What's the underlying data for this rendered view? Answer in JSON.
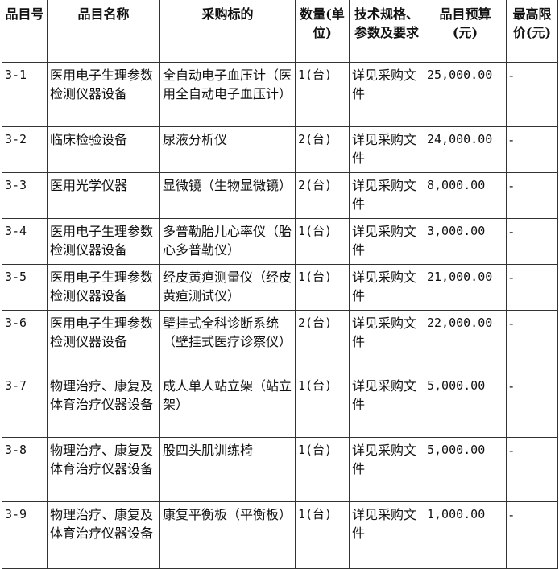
{
  "headers": [
    "品目号",
    "品目名称",
    "采购标的",
    "数量(单位)",
    "技术规格、参数及要求",
    "品目预算(元)",
    "最高限价(元)"
  ],
  "rows": [
    {
      "id": "3-1",
      "name": "医用电子生理参数检测仪器设备",
      "target": "全自动电子血压计（医用全自动电子血压计）",
      "qty": "1(台)",
      "spec": "详见采购文件",
      "budget": "25,000.00",
      "limit": "-"
    },
    {
      "id": "3-2",
      "name": "临床检验设备",
      "target": "尿液分析仪",
      "qty": "2(台)",
      "spec": "详见采购文件",
      "budget": "24,000.00",
      "limit": "-"
    },
    {
      "id": "3-3",
      "name": "医用光学仪器",
      "target": "显微镜（生物显微镜）",
      "qty": "2(台)",
      "spec": "详见采购文件",
      "budget": "8,000.00",
      "limit": "-"
    },
    {
      "id": "3-4",
      "name": "医用电子生理参数检测仪器设备",
      "target": "多普勒胎儿心率仪（胎心多普勒仪）",
      "qty": "1(台)",
      "spec": "详见采购文件",
      "budget": "3,000.00",
      "limit": "-"
    },
    {
      "id": "3-5",
      "name": "医用电子生理参数检测仪器设备",
      "target": "经皮黄疸测量仪（经皮黄疸测试仪）",
      "qty": "1(台)",
      "spec": "详见采购文件",
      "budget": "21,000.00",
      "limit": "-"
    },
    {
      "id": "3-6",
      "name": "医用电子生理参数检测仪器设备",
      "target": "壁挂式全科诊断系统（壁挂式医疗诊察仪）",
      "qty": "2(台)",
      "spec": "详见采购文件",
      "budget": "22,000.00",
      "limit": "-"
    },
    {
      "id": "3-7",
      "name": "物理治疗、康复及体育治疗仪器设备",
      "target": "成人单人站立架（站立架）",
      "qty": "1(台)",
      "spec": "详见采购文件",
      "budget": "5,000.00",
      "limit": "-"
    },
    {
      "id": "3-8",
      "name": "物理治疗、康复及体育治疗仪器设备",
      "target": "股四头肌训练椅",
      "qty": "1(台)",
      "spec": "详见采购文件",
      "budget": "5,000.00",
      "limit": "-"
    },
    {
      "id": "3-9",
      "name": "物理治疗、康复及体育治疗仪器设备",
      "target": "康复平衡板（平衡板）",
      "qty": "1(台)",
      "spec": "详见采购文件",
      "budget": "1,000.00",
      "limit": "-"
    }
  ]
}
